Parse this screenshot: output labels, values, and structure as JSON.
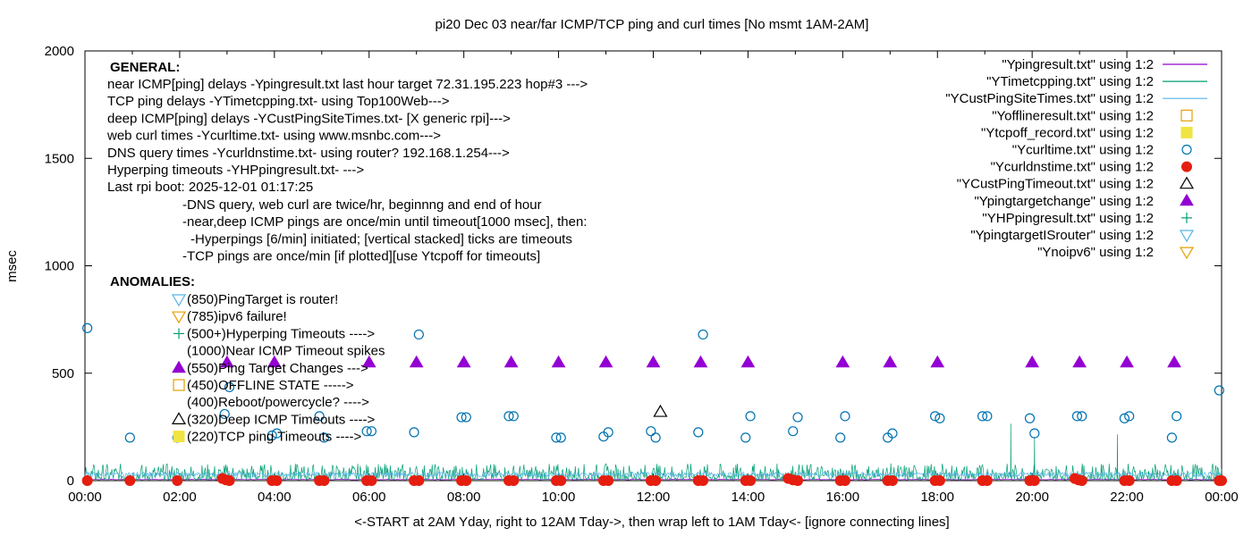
{
  "chart_data": {
    "type": "scatter",
    "title": "pi20 Dec 03  near/far ICMP/TCP ping and curl times [No msmt 1AM-2AM]",
    "xlabel": "<-START at 2AM Yday, right to 12AM Tday->, then wrap left to 1AM Tday<- [ignore connecting lines]",
    "ylabel": "msec",
    "xlim": [
      0,
      24
    ],
    "ylim": [
      0,
      2000
    ],
    "grid": false,
    "legend_position": "top-right",
    "x_ticks": [
      "00:00",
      "02:00",
      "04:00",
      "06:00",
      "08:00",
      "10:00",
      "12:00",
      "14:00",
      "16:00",
      "18:00",
      "20:00",
      "22:00",
      "00:00"
    ],
    "y_ticks": [
      0,
      500,
      1000,
      1500,
      2000
    ],
    "series": [
      {
        "name": "\"Ypingresult.txt\" using 1:2",
        "style": "line",
        "color": "#9400d3",
        "note": "near ICMP ping ~5 msec baseline across the day"
      },
      {
        "name": "\"YTimetcpping.txt\" using 1:2",
        "style": "line",
        "color": "#009e73",
        "note": "TCP ping noise 0-80 msec with spikes",
        "spikes": [
          [
            19.55,
            265
          ],
          [
            20.05,
            205
          ],
          [
            21.8,
            215
          ]
        ]
      },
      {
        "name": "\"YCustPingSiteTimes.txt\" using 1:2",
        "style": "line",
        "color": "#56b4e9",
        "note": "deep ICMP ~20-40 msec"
      },
      {
        "name": "\"Yofflineresult.txt\" using 1:2",
        "style": "open-square",
        "color": "#e69f00",
        "points": []
      },
      {
        "name": "\"Ytcpoff_record.txt\" using 1:2",
        "style": "filled-square",
        "color": "#f0e442",
        "points": []
      },
      {
        "name": "\"Ycurltime.txt\" using 1:2",
        "style": "open-circle",
        "color": "#0072b2",
        "points": [
          [
            0.05,
            710
          ],
          [
            0.95,
            200
          ],
          [
            1.95,
            200
          ],
          [
            2.95,
            310
          ],
          [
            3.05,
            435
          ],
          [
            3.95,
            210
          ],
          [
            4.05,
            220
          ],
          [
            4.95,
            300
          ],
          [
            5.05,
            200
          ],
          [
            5.95,
            230
          ],
          [
            6.05,
            230
          ],
          [
            6.95,
            225
          ],
          [
            7.05,
            680
          ],
          [
            7.95,
            295
          ],
          [
            8.05,
            295
          ],
          [
            8.95,
            300
          ],
          [
            9.05,
            300
          ],
          [
            9.95,
            200
          ],
          [
            10.05,
            200
          ],
          [
            10.95,
            205
          ],
          [
            11.05,
            225
          ],
          [
            11.95,
            230
          ],
          [
            12.05,
            200
          ],
          [
            12.95,
            225
          ],
          [
            13.05,
            680
          ],
          [
            13.95,
            200
          ],
          [
            14.05,
            300
          ],
          [
            14.95,
            230
          ],
          [
            15.05,
            295
          ],
          [
            15.95,
            200
          ],
          [
            16.05,
            300
          ],
          [
            16.95,
            200
          ],
          [
            17.05,
            220
          ],
          [
            17.95,
            300
          ],
          [
            18.05,
            290
          ],
          [
            18.95,
            300
          ],
          [
            19.05,
            300
          ],
          [
            19.95,
            290
          ],
          [
            20.05,
            220
          ],
          [
            20.95,
            300
          ],
          [
            21.05,
            300
          ],
          [
            21.95,
            290
          ],
          [
            22.05,
            300
          ],
          [
            22.95,
            200
          ],
          [
            23.05,
            300
          ],
          [
            23.95,
            420
          ]
        ]
      },
      {
        "name": "\"Ycurldnstime.txt\" using 1:2",
        "style": "filled-circle",
        "color": "#e51e10",
        "points": [
          [
            0.05,
            0
          ],
          [
            0.95,
            0
          ],
          [
            1.95,
            0
          ],
          [
            2.9,
            10
          ],
          [
            2.98,
            3
          ],
          [
            3.05,
            0
          ],
          [
            3.95,
            0
          ],
          [
            4.05,
            0
          ],
          [
            4.95,
            0
          ],
          [
            5.05,
            0
          ],
          [
            5.95,
            0
          ],
          [
            6.05,
            0
          ],
          [
            6.95,
            0
          ],
          [
            7.05,
            0
          ],
          [
            7.95,
            0
          ],
          [
            8.05,
            0
          ],
          [
            8.95,
            0
          ],
          [
            9.05,
            0
          ],
          [
            9.95,
            0
          ],
          [
            10.05,
            0
          ],
          [
            10.95,
            0
          ],
          [
            11.05,
            0
          ],
          [
            11.95,
            0
          ],
          [
            12.05,
            0
          ],
          [
            12.95,
            0
          ],
          [
            13.05,
            0
          ],
          [
            13.95,
            0
          ],
          [
            14.05,
            0
          ],
          [
            14.85,
            10
          ],
          [
            14.95,
            3
          ],
          [
            15.05,
            0
          ],
          [
            15.95,
            0
          ],
          [
            16.05,
            0
          ],
          [
            16.95,
            0
          ],
          [
            17.05,
            0
          ],
          [
            17.95,
            0
          ],
          [
            18.05,
            0
          ],
          [
            18.95,
            0
          ],
          [
            19.05,
            0
          ],
          [
            19.95,
            0
          ],
          [
            20.05,
            0
          ],
          [
            20.9,
            10
          ],
          [
            20.98,
            3
          ],
          [
            21.05,
            0
          ],
          [
            21.95,
            0
          ],
          [
            22.05,
            0
          ],
          [
            22.95,
            0
          ],
          [
            23.05,
            0
          ],
          [
            23.95,
            0
          ],
          [
            24.0,
            0
          ]
        ]
      },
      {
        "name": "\"YCustPingTimeout.txt\" using 1:2",
        "style": "open-triangle",
        "color": "#000000",
        "points": [
          [
            12.15,
            320
          ]
        ]
      },
      {
        "name": "\"Ypingtargetchange\" using 1:2",
        "style": "filled-triangle",
        "color": "#9400d3",
        "points": [
          [
            3.0,
            550
          ],
          [
            4.0,
            550
          ],
          [
            6.0,
            550
          ],
          [
            7.0,
            550
          ],
          [
            8.0,
            550
          ],
          [
            9.0,
            550
          ],
          [
            10.0,
            550
          ],
          [
            11.0,
            550
          ],
          [
            12.0,
            550
          ],
          [
            13.0,
            550
          ],
          [
            14.0,
            550
          ],
          [
            16.0,
            550
          ],
          [
            17.0,
            550
          ],
          [
            18.0,
            550
          ],
          [
            20.0,
            550
          ],
          [
            21.0,
            550
          ],
          [
            22.0,
            550
          ],
          [
            23.0,
            550
          ]
        ]
      },
      {
        "name": "\"YHPpingresult.txt\" using 1:2",
        "style": "plus",
        "color": "#009e73",
        "points": []
      },
      {
        "name": "\"YpingtargetISrouter\" using 1:2",
        "style": "open-triangle-down",
        "color": "#56b4e9",
        "points": []
      },
      {
        "name": "\"Ynoipv6\" using 1:2",
        "style": "open-triangle-down",
        "color": "#e69f00",
        "points": []
      }
    ],
    "annotations": {
      "general_title": "GENERAL:",
      "general_lines": [
        "near ICMP[ping] delays -Ypingresult.txt last hour target 72.31.195.223 hop#3 --->",
        "TCP ping delays -YTimetcpping.txt- using Top100Web--->",
        "deep ICMP[ping] delays -YCustPingSiteTimes.txt- [X generic rpi]--->",
        "web curl times -Ycurltime.txt- using www.msnbc.com--->",
        "DNS query times -Ycurldnstime.txt- using router? 192.168.1.254--->",
        "Hyperping timeouts -YHPpingresult.txt- --->",
        "Last rpi boot: 2025-12-01 01:17:25"
      ],
      "notes": [
        "-DNS query, web curl are twice/hr, beginnng and end of hour",
        "-near,deep ICMP pings are once/min until timeout[1000 msec], then:",
        "-Hyperpings [6/min] initiated; [vertical stacked] ticks are timeouts",
        "-TCP pings are once/min [if plotted][use Ytcpoff for timeouts]"
      ],
      "anomalies_title": "ANOMALIES:",
      "anomaly_lines": [
        {
          "symbol": "open-triangle-down",
          "color": "#56b4e9",
          "text": "(850)PingTarget is router!"
        },
        {
          "symbol": "open-triangle-down",
          "color": "#e69f00",
          "text": "(785)ipv6 failure!"
        },
        {
          "symbol": "plus",
          "color": "#009e73",
          "text": "(500+)Hyperping Timeouts ---->"
        },
        {
          "symbol": "none",
          "color": "#000000",
          "text": "(1000)Near ICMP Timeout spikes"
        },
        {
          "symbol": "filled-triangle",
          "color": "#9400d3",
          "text": "(550)Ping Target Changes --->"
        },
        {
          "symbol": "open-square",
          "color": "#e69f00",
          "text": "(450)OFFLINE STATE ----->"
        },
        {
          "symbol": "none",
          "color": "#000000",
          "text": "(400)Reboot/powercycle? ---->"
        },
        {
          "symbol": "open-triangle",
          "color": "#000000",
          "text": "(320)Deep ICMP Timeouts ---->"
        },
        {
          "symbol": "filled-square",
          "color": "#f0e442",
          "text": "(220)TCP ping Timeouts ---->"
        }
      ]
    }
  }
}
